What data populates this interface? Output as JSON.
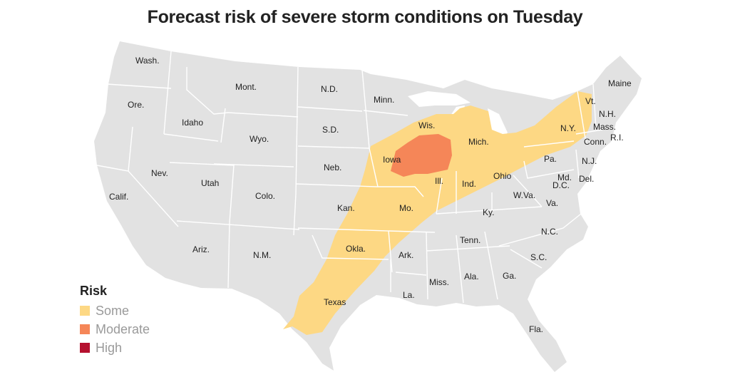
{
  "title": "Forecast risk of severe storm conditions on Tuesday",
  "legend": {
    "title": "Risk",
    "items": [
      {
        "label": "Some",
        "color": "#fdd884"
      },
      {
        "label": "Moderate",
        "color": "#f58658"
      },
      {
        "label": "High",
        "color": "#b5112f"
      }
    ]
  },
  "colors": {
    "land": "#e2e2e2",
    "border": "#ffffff",
    "some": "#fdd884",
    "moderate": "#f58658"
  },
  "states": {
    "wa": "Wash.",
    "or": "Ore.",
    "ca": "Calif.",
    "id": "Idaho",
    "nv": "Nev.",
    "mt": "Mont.",
    "wy": "Wyo.",
    "ut": "Utah",
    "az": "Ariz.",
    "co": "Colo.",
    "nm": "N.M.",
    "nd": "N.D.",
    "sd": "S.D.",
    "ne": "Neb.",
    "ks": "Kan.",
    "ok": "Okla.",
    "tx": "Texas",
    "mn": "Minn.",
    "ia": "Iowa",
    "mo": "Mo.",
    "ar": "Ark.",
    "la": "La.",
    "wi": "Wis.",
    "il": "Ill.",
    "ms": "Miss.",
    "mi": "Mich.",
    "in": "Ind.",
    "oh": "Ohio",
    "ky": "Ky.",
    "tn": "Tenn.",
    "al": "Ala.",
    "ga": "Ga.",
    "fl": "Fla.",
    "sc": "S.C.",
    "nc": "N.C.",
    "va": "Va.",
    "wv": "W.Va.",
    "pa": "Pa.",
    "md": "Md.",
    "dc": "D.C.",
    "de": "Del.",
    "nj": "N.J.",
    "ny": "N.Y.",
    "ct": "Conn.",
    "ri": "R.I.",
    "ma": "Mass.",
    "vt": "Vt.",
    "nh": "N.H.",
    "me": "Maine"
  }
}
